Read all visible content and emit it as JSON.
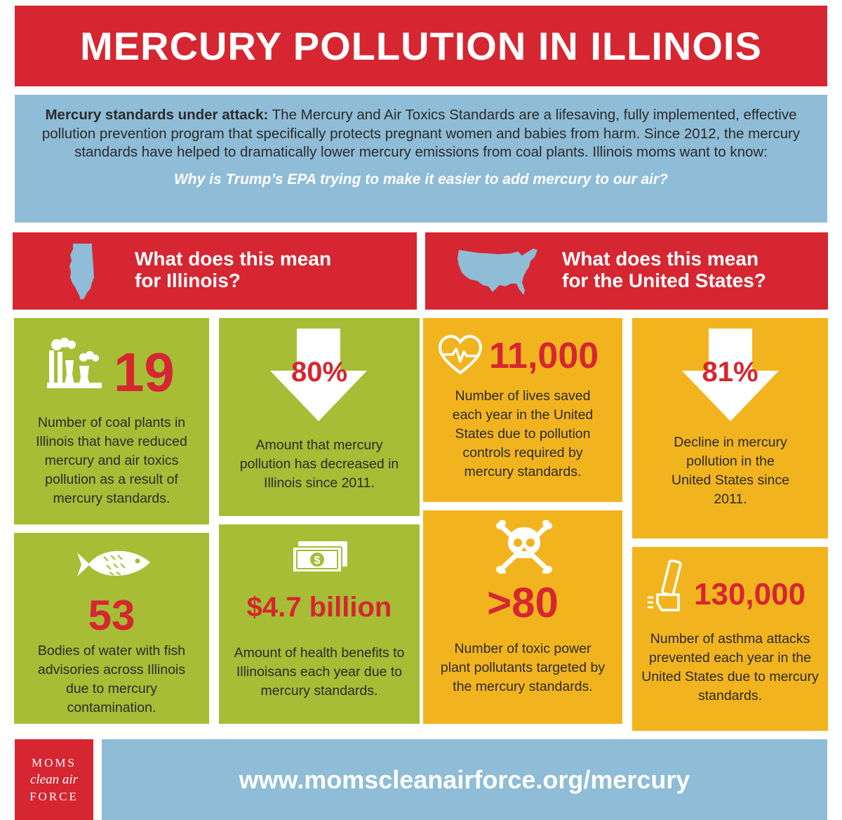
{
  "title": "MERCURY POLLUTION IN ILLINOIS",
  "intro": {
    "lead": "Mercury standards under attack:",
    "body": "The Mercury and Air Toxics Standards are a lifesaving, fully implemented, effective pollution prevention program that specifically protects pregnant women and babies from harm. Since 2012, the mercury standards have helped to dramatically lower mercury emissions from coal plants. Illinois moms want to know:",
    "question": "Why is Trump’s EPA trying to make it easier to add mercury to our air?"
  },
  "illinois": {
    "heading_line1": "What does this mean",
    "heading_line2": "for Illinois?",
    "icon": "illinois-map-icon",
    "coal": {
      "icon": "power-plant-icon",
      "value": "19",
      "text": "Number of coal plants in Illinois that have reduced mercury and air toxics pollution as a result of mercury standards."
    },
    "decline": {
      "icon": "down-arrow-icon",
      "value": "80%",
      "text": "Amount that mercury pollution has decreased in Illinois since 2011."
    },
    "water": {
      "icon": "fish-icon",
      "value": "53",
      "text": "Bodies of water with fish advisories across Illinois due to mercury contamination."
    },
    "benefits": {
      "icon": "money-icon",
      "value": "$4.7 billion",
      "text": "Amount of health benefits to Illinoisans each year due to mercury standards."
    }
  },
  "us": {
    "heading_line1": "What does this mean",
    "heading_line2": "for the United States?",
    "icon": "usa-map-icon",
    "lives": {
      "icon": "heart-pulse-icon",
      "value": "11,000",
      "text": "Number of lives saved each year in the United States due to pollution controls required by mercury standards."
    },
    "decline": {
      "icon": "down-arrow-icon",
      "value": "81%",
      "text": "Decline in mercury pollution in the United States since 2011."
    },
    "pollutants": {
      "icon": "skull-crossbones-icon",
      "value": ">80",
      "text": "Number of toxic power plant pollutants targeted by the mercury standards."
    },
    "asthma": {
      "icon": "inhaler-icon",
      "value": "130,000",
      "text": "Number of asthma attacks prevented each year in the United States due to mercury standards."
    }
  },
  "footer": {
    "logo_line1": "MOMS",
    "logo_line2": "clean air",
    "logo_line3": "FORCE",
    "url": "www.momscleanairforce.org/mercury"
  },
  "colors": {
    "red": "#d62631",
    "blue": "#8fbcd6",
    "green": "#a6bd35",
    "yellow": "#f2b41e"
  }
}
